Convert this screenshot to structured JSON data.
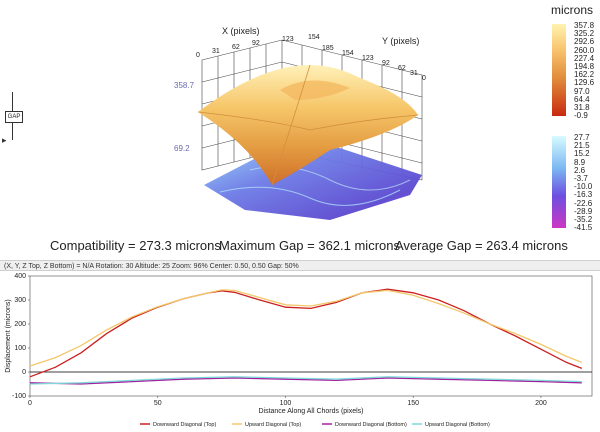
{
  "plot3d": {
    "x_axis_label": "X (pixels)",
    "y_axis_label": "Y (pixels)",
    "x_ticks": [
      "0",
      "31",
      "62",
      "92",
      "123",
      "154"
    ],
    "y_ticks": [
      "185",
      "154",
      "123",
      "92",
      "62",
      "31",
      "0"
    ],
    "z_top_label": "358.7",
    "z_bottom_label": "69.2"
  },
  "scale_top": {
    "title": "microns",
    "values": [
      "357.8",
      "325.2",
      "292.6",
      "260.0",
      "227.4",
      "194.8",
      "162.2",
      "129.6",
      "97.0",
      "64.4",
      "31.8",
      "-0.9"
    ],
    "colors": [
      "#fff3b0",
      "#ffd98a",
      "#f7c06a",
      "#eca44f",
      "#e08a3a",
      "#d4712b",
      "#c85a20"
    ]
  },
  "scale_bottom": {
    "values": [
      "27.7",
      "21.5",
      "15.2",
      "8.9",
      "2.6",
      "-3.7",
      "-10.0",
      "-16.3",
      "-22.6",
      "-28.9",
      "-35.2",
      "-41.5"
    ],
    "colors": [
      "#d7fbff",
      "#9fe6ff",
      "#7bb8f2",
      "#6d7ce6",
      "#7b4fd8",
      "#a73fd0",
      "#cc37c4"
    ]
  },
  "left_panel": {
    "gap_tag": "GAP",
    "arrow": "▸"
  },
  "stats": {
    "compatibility": "Compatibility = 273.3 microns",
    "max_gap": "Maximum Gap = 362.1 microns",
    "average_gap": "Average Gap = 263.4 microns"
  },
  "statusbar": {
    "text": "(X, Y, Z Top, Z Bottom) = N/A  Rotation: 30 Altitude: 25  Zoom: 96%  Center: 0.50, 0.50  Gap: 50%"
  },
  "colors": {
    "downward_top": "#cc1f1f",
    "upward_top": "#f2c86a",
    "downward_bottom": "#a020a0",
    "upward_bottom": "#7fd8d8"
  },
  "chart_data": {
    "type": "line",
    "title": "",
    "xlabel": "Distance Along All Chords (pixels)",
    "ylabel": "Displacement (microns)",
    "xlim": [
      0,
      220
    ],
    "ylim": [
      -100,
      400
    ],
    "x_ticks": [
      "0",
      "50",
      "100",
      "150",
      "200"
    ],
    "y_ticks": [
      "400",
      "300",
      "200",
      "100",
      "0",
      "-100"
    ],
    "series": [
      {
        "name": "Downward Diagonal (Top)",
        "x": [
          0,
          10,
          20,
          30,
          40,
          50,
          60,
          70,
          75,
          80,
          90,
          100,
          110,
          120,
          130,
          140,
          150,
          160,
          170,
          180,
          190,
          200,
          210,
          216
        ],
        "y": [
          -20,
          20,
          80,
          160,
          225,
          270,
          305,
          330,
          338,
          332,
          300,
          270,
          265,
          290,
          330,
          345,
          330,
          300,
          255,
          200,
          150,
          95,
          40,
          15
        ]
      },
      {
        "name": "Upward Diagonal (Top)",
        "x": [
          0,
          10,
          20,
          30,
          40,
          50,
          60,
          70,
          75,
          80,
          90,
          100,
          110,
          120,
          130,
          140,
          150,
          160,
          170,
          180,
          190,
          200,
          210,
          216
        ],
        "y": [
          25,
          60,
          110,
          175,
          230,
          272,
          305,
          330,
          342,
          340,
          310,
          280,
          275,
          295,
          330,
          340,
          320,
          285,
          245,
          200,
          160,
          115,
          65,
          40
        ]
      },
      {
        "name": "Downward Diagonal (Bottom)",
        "x": [
          0,
          20,
          40,
          60,
          80,
          100,
          120,
          140,
          160,
          180,
          200,
          216
        ],
        "y": [
          -45,
          -50,
          -40,
          -30,
          -25,
          -30,
          -35,
          -25,
          -30,
          -35,
          -40,
          -45
        ]
      },
      {
        "name": "Upward Diagonal (Bottom)",
        "x": [
          0,
          20,
          40,
          60,
          80,
          100,
          120,
          140,
          160,
          180,
          200,
          216
        ],
        "y": [
          -50,
          -45,
          -35,
          -25,
          -20,
          -25,
          -30,
          -20,
          -25,
          -30,
          -35,
          -40
        ]
      }
    ]
  }
}
